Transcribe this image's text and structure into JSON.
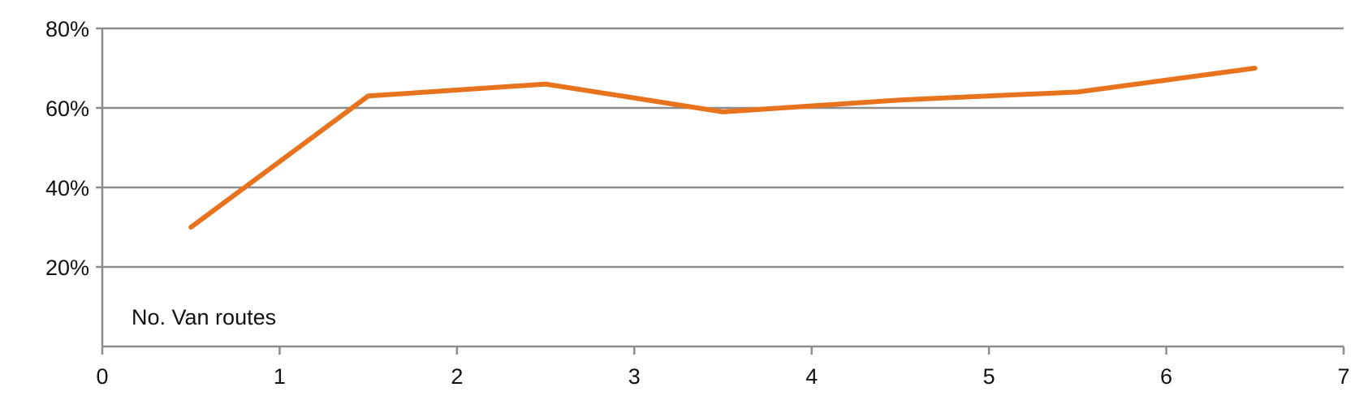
{
  "chart_data": {
    "type": "line",
    "title": "",
    "xlabel": "",
    "ylabel": "",
    "xlim": [
      0,
      7
    ],
    "ylim": [
      0,
      80
    ],
    "x_ticks": [
      0,
      1,
      2,
      3,
      4,
      5,
      6,
      7
    ],
    "x_tick_labels": [
      "0",
      "1",
      "2",
      "3",
      "4",
      "5",
      "6",
      "7"
    ],
    "y_ticks": [
      20,
      40,
      60,
      80
    ],
    "y_tick_labels": [
      "20%",
      "40%",
      "60%",
      "80%"
    ],
    "grid": "horizontal",
    "legend": "none",
    "annotation": "No. Van routes",
    "series": [
      {
        "color": "#e8731e",
        "x": [
          0.5,
          1.5,
          2.5,
          3.5,
          4.5,
          5.5,
          6.5
        ],
        "y": [
          30,
          63,
          66,
          59,
          62,
          64,
          70
        ]
      }
    ]
  }
}
